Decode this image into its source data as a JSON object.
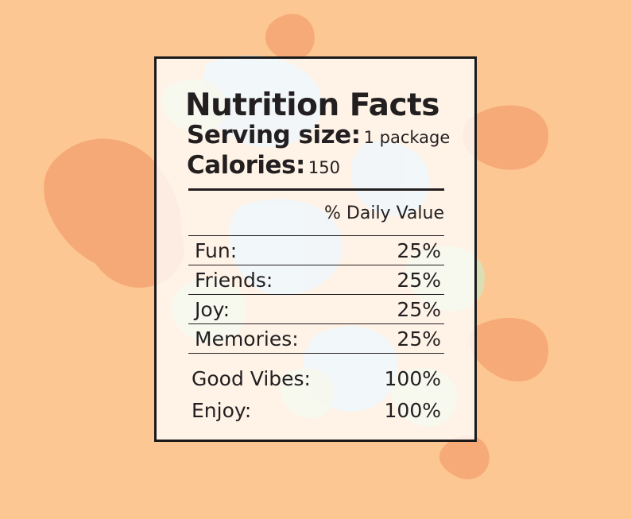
{
  "label": {
    "title": "Nutrition Facts",
    "serving_label": "Serving size:",
    "serving_value": "1 package",
    "calories_label": "Calories:",
    "calories_value": "150",
    "dv_header": "% Daily Value",
    "rows": [
      {
        "name": "Fun:",
        "value": "25%"
      },
      {
        "name": "Friends:",
        "value": "25%"
      },
      {
        "name": "Joy:",
        "value": "25%"
      },
      {
        "name": "Memories:",
        "value": "25%"
      }
    ],
    "extras": [
      {
        "name": "Good Vibes:",
        "value": "100%"
      },
      {
        "name": "Enjoy:",
        "value": "100%"
      }
    ]
  },
  "colors": {
    "background": "#FDC793",
    "blob_orange": "#F3A472",
    "blob_blue": "#BCD9EE",
    "blob_green": "#D7E0B7",
    "ink": "#231F20"
  }
}
